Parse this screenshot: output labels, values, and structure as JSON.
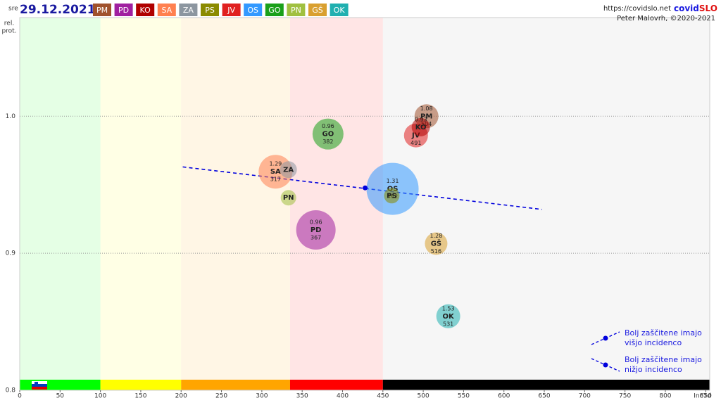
{
  "chart_data": {
    "type": "bubble",
    "weekday": "sre",
    "date": "29.12.2021",
    "site": "https://covidslo.net",
    "brand": [
      "covid",
      "SLO"
    ],
    "author": "Peter Malovrh, ©2020-2021",
    "y_label": [
      "rel.",
      "prot."
    ],
    "x_label": "Inc7d",
    "xlim": [
      0,
      855
    ],
    "ylim": [
      0.8,
      1.072
    ],
    "xticks": [
      0,
      50,
      100,
      150,
      200,
      250,
      300,
      350,
      400,
      450,
      500,
      550,
      600,
      650,
      700,
      750,
      800,
      850
    ],
    "yticks": [
      0.8,
      0.9,
      {
        "value": 1,
        "label": "1.0"
      }
    ],
    "grid": true,
    "zones": [
      {
        "from": 0,
        "to": 100,
        "color": "#00ff00"
      },
      {
        "from": 100,
        "to": 200,
        "color": "#ffff00"
      },
      {
        "from": 200,
        "to": 335,
        "color": "#ffa500"
      },
      {
        "from": 335,
        "to": 450,
        "color": "#ff0000"
      },
      {
        "from": 450,
        "to": 855,
        "color": "#000000"
      }
    ],
    "series": [
      {
        "name": "PM",
        "color": "#a0522d",
        "x": 504,
        "y": 1.0,
        "size": 289,
        "r": 1.08,
        "labeled": true
      },
      {
        "name": "PD",
        "color": "#a020a0",
        "x": 367,
        "y": 0.917,
        "size": 784,
        "r": 0.96,
        "labeled": true
      },
      {
        "name": "KO",
        "color": "#b00000",
        "x": 497,
        "y": 0.992,
        "size": 169,
        "r": 0.93,
        "labeled": false
      },
      {
        "name": "SA",
        "color": "#ff8050",
        "x": 317,
        "y": 0.9595,
        "size": 576,
        "r": 1.29,
        "labeled": true
      },
      {
        "name": "ZA",
        "color": "#8c96a0",
        "x": 333,
        "y": 0.961,
        "size": 144,
        "labeled": false
      },
      {
        "name": "PS",
        "color": "#8b8b00",
        "x": 461,
        "y": 0.942,
        "size": 121,
        "labeled": false
      },
      {
        "name": "JV",
        "color": "#e02020",
        "x": 491,
        "y": 0.986,
        "size": 289,
        "labeled": true
      },
      {
        "name": "OS",
        "color": "#3399ff",
        "x": 462,
        "y": 0.947,
        "size": 1369,
        "r": 1.31,
        "labeled": true
      },
      {
        "name": "GO",
        "color": "#1aa01a",
        "x": 382,
        "y": 0.987,
        "size": 484,
        "r": 0.96,
        "labeled": true
      },
      {
        "name": "PN",
        "color": "#a0c040",
        "x": 333,
        "y": 0.9405,
        "size": 121,
        "labeled": false
      },
      {
        "name": "GŠ",
        "color": "#d9a030",
        "x": 516,
        "y": 0.907,
        "size": 256,
        "r": 1.28,
        "labeled": true
      },
      {
        "name": "OK",
        "color": "#20b0b0",
        "x": 531,
        "y": 0.854,
        "size": 289,
        "r": 1.53,
        "labeled": true
      }
    ],
    "trend": {
      "color": "#0000dd",
      "x": [
        202,
        647
      ],
      "y": [
        0.963,
        0.932
      ],
      "point": [
        428,
        0.9477
      ]
    },
    "notes": [
      [
        "Bolj  zaščitene imajo",
        "višjo incidenco"
      ],
      [
        "Bolj  zaščitene imajo",
        "nižjo incidenco"
      ]
    ]
  }
}
